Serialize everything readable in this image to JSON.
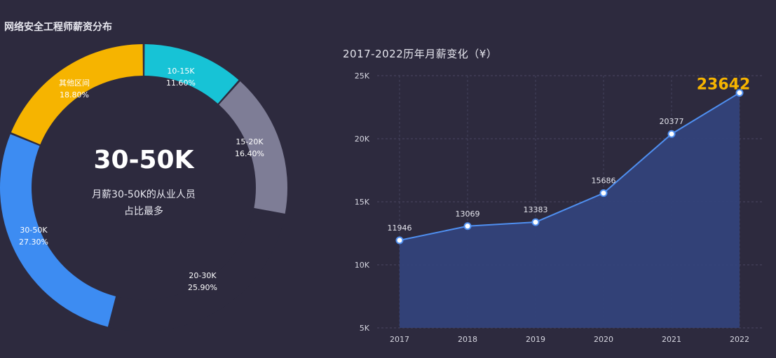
{
  "titles": {
    "left": "网络安全工程师薪资分布",
    "right": "2017-2022历年月薪变化（¥）"
  },
  "center": {
    "headline": "30-50K",
    "line1": "月薪30-50K的从业人员",
    "line2": "占比最多"
  },
  "chart_data": [
    {
      "type": "pie",
      "title": "网络安全工程师薪资分布",
      "slices": [
        {
          "label": "10-15K",
          "value": 11.6,
          "display": "11.60%",
          "color": "#17c3d6"
        },
        {
          "label": "15-20K",
          "value": 16.4,
          "display": "16.40%",
          "color": "#7e7d96"
        },
        {
          "label": "20-30K",
          "value": 25.9,
          "display": "25.90%",
          "color": "#2d2a3e"
        },
        {
          "label": "30-50K",
          "value": 27.3,
          "display": "27.30%",
          "color": "#3d8cf2"
        },
        {
          "label": "其他区间",
          "value": 18.8,
          "display": "18.80%",
          "color": "#f6b400"
        }
      ]
    },
    {
      "type": "area",
      "title": "2017-2022历年月薪变化（¥）",
      "x": [
        "2017",
        "2018",
        "2019",
        "2020",
        "2021",
        "2022"
      ],
      "values": [
        11946,
        13069,
        13383,
        15686,
        20377,
        23642
      ],
      "ylim": [
        5000,
        25000
      ],
      "yticks": [
        5000,
        10000,
        15000,
        20000,
        25000
      ],
      "ytick_labels": [
        "5K",
        "10K",
        "15K",
        "20K",
        "25K"
      ],
      "highlight_last": true,
      "highlight_color": "#f6b400",
      "line_color": "#4f8ff0",
      "area_color": "#33427a",
      "grid": true
    }
  ]
}
